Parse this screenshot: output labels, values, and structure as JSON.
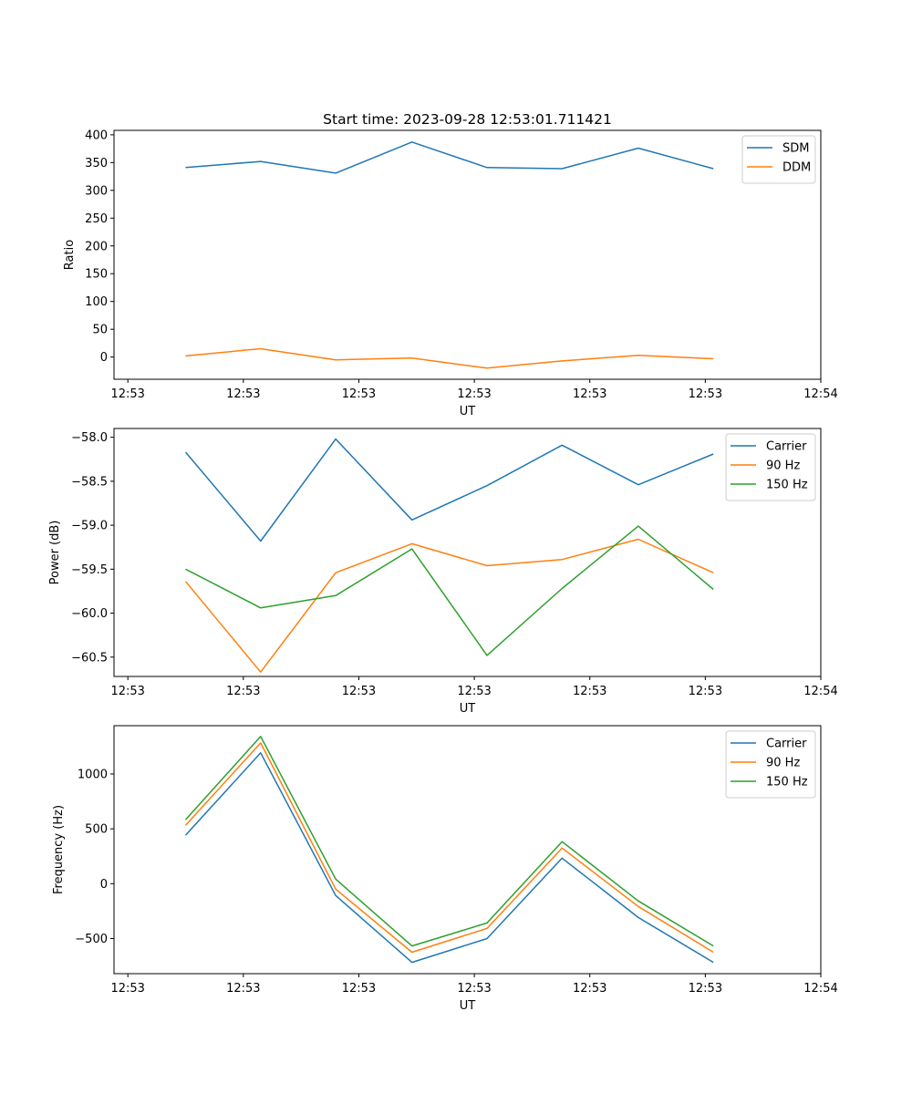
{
  "figure_title": "Start time: 2023-09-28 12:53:01.711421",
  "colors": {
    "blue": "#1f77b4",
    "orange": "#ff7f0e",
    "green": "#2ca02c"
  },
  "chart_data": [
    {
      "type": "line",
      "title": "Start time: 2023-09-28 12:53:01.711421",
      "xlabel": "UT",
      "ylabel": "Ratio",
      "x_unit": "seconds after 12:53:00",
      "x": [
        5.0,
        11.5,
        18.0,
        24.6,
        31.1,
        37.6,
        44.2,
        50.7
      ],
      "xlim": [
        -1.2,
        60.0
      ],
      "xticks": [
        0,
        10,
        20,
        30,
        40,
        50,
        60
      ],
      "xtick_labels": [
        "12:53",
        "12:53",
        "12:53",
        "12:53",
        "12:53",
        "12:53",
        "12:54"
      ],
      "ylim": [
        -40,
        408
      ],
      "yticks": [
        0,
        50,
        100,
        150,
        200,
        250,
        300,
        350,
        400
      ],
      "ytick_labels": [
        "0",
        "50",
        "100",
        "150",
        "200",
        "250",
        "300",
        "350",
        "400"
      ],
      "grid": false,
      "legend": "top-right",
      "series": [
        {
          "name": "SDM",
          "color": "#1f77b4",
          "values": [
            341,
            352,
            331,
            387,
            341,
            339,
            376,
            339
          ]
        },
        {
          "name": "DDM",
          "color": "#ff7f0e",
          "values": [
            2,
            15,
            -5,
            -2,
            -20,
            -7,
            3,
            -3
          ]
        }
      ]
    },
    {
      "type": "line",
      "title": "",
      "xlabel": "UT",
      "ylabel": "Power (dB)",
      "x_unit": "seconds after 12:53:00",
      "x": [
        5.0,
        11.5,
        18.0,
        24.6,
        31.1,
        37.6,
        44.2,
        50.7
      ],
      "xlim": [
        -1.2,
        60.0
      ],
      "xticks": [
        0,
        10,
        20,
        30,
        40,
        50,
        60
      ],
      "xtick_labels": [
        "12:53",
        "12:53",
        "12:53",
        "12:53",
        "12:53",
        "12:53",
        "12:54"
      ],
      "ylim": [
        -60.72,
        -57.9
      ],
      "yticks": [
        -60.5,
        -60.0,
        -59.5,
        -59.0,
        -58.5,
        -58.0
      ],
      "ytick_labels": [
        "−60.5",
        "−60.0",
        "−59.5",
        "−59.0",
        "−58.5",
        "−58.0"
      ],
      "grid": false,
      "legend": "top-right",
      "series": [
        {
          "name": "Carrier",
          "color": "#1f77b4",
          "values": [
            -58.17,
            -59.18,
            -58.02,
            -58.94,
            -58.55,
            -58.09,
            -58.54,
            -58.19
          ]
        },
        {
          "name": "90 Hz",
          "color": "#ff7f0e",
          "values": [
            -59.64,
            -60.67,
            -59.54,
            -59.21,
            -59.46,
            -59.39,
            -59.16,
            -59.54
          ]
        },
        {
          "name": "150 Hz",
          "color": "#2ca02c",
          "values": [
            -59.5,
            -59.94,
            -59.8,
            -59.27,
            -60.48,
            -59.72,
            -59.01,
            -59.73
          ]
        }
      ]
    },
    {
      "type": "line",
      "title": "",
      "xlabel": "UT",
      "ylabel": "Frequency (Hz)",
      "x_unit": "seconds after 12:53:00",
      "x": [
        5.0,
        11.5,
        18.0,
        24.6,
        31.1,
        37.6,
        44.2,
        50.7
      ],
      "xlim": [
        -1.2,
        60.0
      ],
      "xticks": [
        0,
        10,
        20,
        30,
        40,
        50,
        60
      ],
      "xtick_labels": [
        "12:53",
        "12:53",
        "12:53",
        "12:53",
        "12:53",
        "12:53",
        "12:54"
      ],
      "ylim": [
        -820,
        1440
      ],
      "yticks": [
        -500,
        0,
        500,
        1000
      ],
      "ytick_labels": [
        "−500",
        "0",
        "500",
        "1000"
      ],
      "grid": false,
      "legend": "top-right",
      "series": [
        {
          "name": "Carrier",
          "color": "#1f77b4",
          "values": [
            442,
            1192,
            -108,
            -717,
            -500,
            233,
            -308,
            -717
          ]
        },
        {
          "name": "90 Hz",
          "color": "#ff7f0e",
          "values": [
            533,
            1283,
            -50,
            -625,
            -408,
            325,
            -208,
            -625
          ]
        },
        {
          "name": "150 Hz",
          "color": "#2ca02c",
          "values": [
            583,
            1342,
            42,
            -567,
            -358,
            383,
            -158,
            -567
          ]
        }
      ]
    }
  ]
}
